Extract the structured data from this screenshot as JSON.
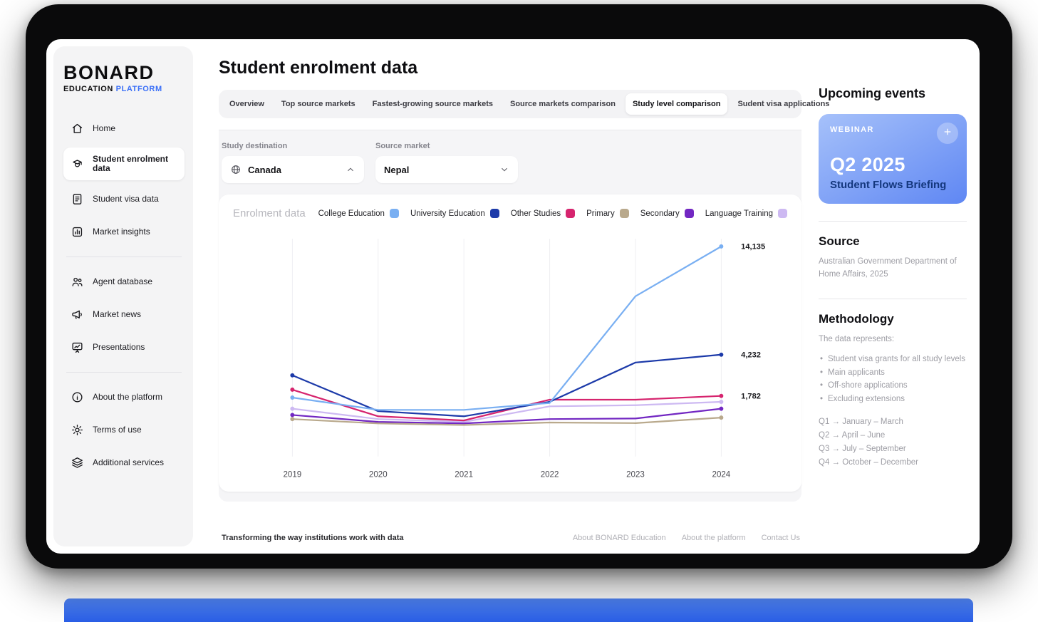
{
  "sidebar": {
    "logo": {
      "line1": "BONARD",
      "line2_black": "EDUCATION",
      "line2_blue": "PLATFORM",
      "platform_color": "#3a6ff7"
    },
    "divider_after": [
      3,
      6
    ],
    "items": [
      {
        "label": "Home",
        "icon": "home"
      },
      {
        "label": "Student enrolment data",
        "icon": "student",
        "active": true
      },
      {
        "label": "Student visa data",
        "icon": "visa-doc"
      },
      {
        "label": "Market insights",
        "icon": "bar-chart"
      },
      {
        "label": "Agent database",
        "icon": "people"
      },
      {
        "label": "Market news",
        "icon": "megaphone"
      },
      {
        "label": "Presentations",
        "icon": "presentation"
      },
      {
        "label": "About the platform",
        "icon": "info"
      },
      {
        "label": "Terms of use",
        "icon": "gear"
      },
      {
        "label": "Additional services",
        "icon": "layers"
      }
    ]
  },
  "header": {
    "title": "Student enrolment data"
  },
  "tabs": {
    "active_index": 4,
    "items": [
      "Overview",
      "Top source markets",
      "Fastest-growing source markets",
      "Source markets comparison",
      "Study level comparison",
      "Sudent visa applications"
    ]
  },
  "filters": {
    "study_destination": {
      "label": "Study destination",
      "value": "Canada",
      "chevron": "up"
    },
    "source_market": {
      "label": "Source market",
      "value": "Nepal",
      "chevron": "down"
    }
  },
  "chart_data": {
    "type": "line",
    "title": "Enrolment data",
    "categories": [
      "2019",
      "2020",
      "2021",
      "2022",
      "2023",
      "2024"
    ],
    "series": [
      {
        "name": "College Education",
        "color": "#79aff2",
        "values": [
          1700,
          1150,
          1150,
          1450,
          9000,
          14135
        ],
        "end_label": "14,135"
      },
      {
        "name": "University Education",
        "color": "#1c3aa9",
        "values": [
          2900,
          1100,
          900,
          1500,
          3700,
          4232
        ],
        "end_label": "4,232"
      },
      {
        "name": "Other Studies",
        "color": "#d6246e",
        "values": [
          2100,
          900,
          750,
          1600,
          1600,
          1782
        ],
        "end_label": "1,782"
      },
      {
        "name": "Primary",
        "color": "#b9a98c",
        "values": [
          800,
          650,
          600,
          680,
          660,
          850
        ]
      },
      {
        "name": "Secondary",
        "color": "#7227c2",
        "values": [
          950,
          700,
          650,
          800,
          820,
          1200
        ]
      },
      {
        "name": "Language Training",
        "color": "#cdb9f2",
        "values": [
          1200,
          800,
          700,
          1300,
          1350,
          1500
        ]
      }
    ],
    "ylim": [
      0,
      15000
    ],
    "grid": "vertical",
    "legend_position": "top-right"
  },
  "right_panel": {
    "upcoming_events_title": "Upcoming events",
    "event_card": {
      "tag": "WEBINAR",
      "title": "Q2 2025",
      "subtitle": "Student Flows Briefing",
      "gradient": [
        "#a6c1fa",
        "#5f87f3"
      ]
    },
    "source": {
      "title": "Source",
      "text": "Australian Government Department of Home Affairs, 2025"
    },
    "methodology": {
      "title": "Methodology",
      "intro": "The data represents:",
      "bullets": [
        "Student visa grants for all study levels",
        "Main applicants",
        "Off-shore applications",
        "Excluding extensions"
      ],
      "quarters": [
        "Q1 → January – March",
        "Q2 → April – June",
        "Q3 → July – September",
        "Q4 → October – December"
      ]
    }
  },
  "footer": {
    "tagline": "Transforming the way institutions work with data",
    "links": [
      "About BONARD Education",
      "About the platform",
      "Contact Us"
    ]
  }
}
